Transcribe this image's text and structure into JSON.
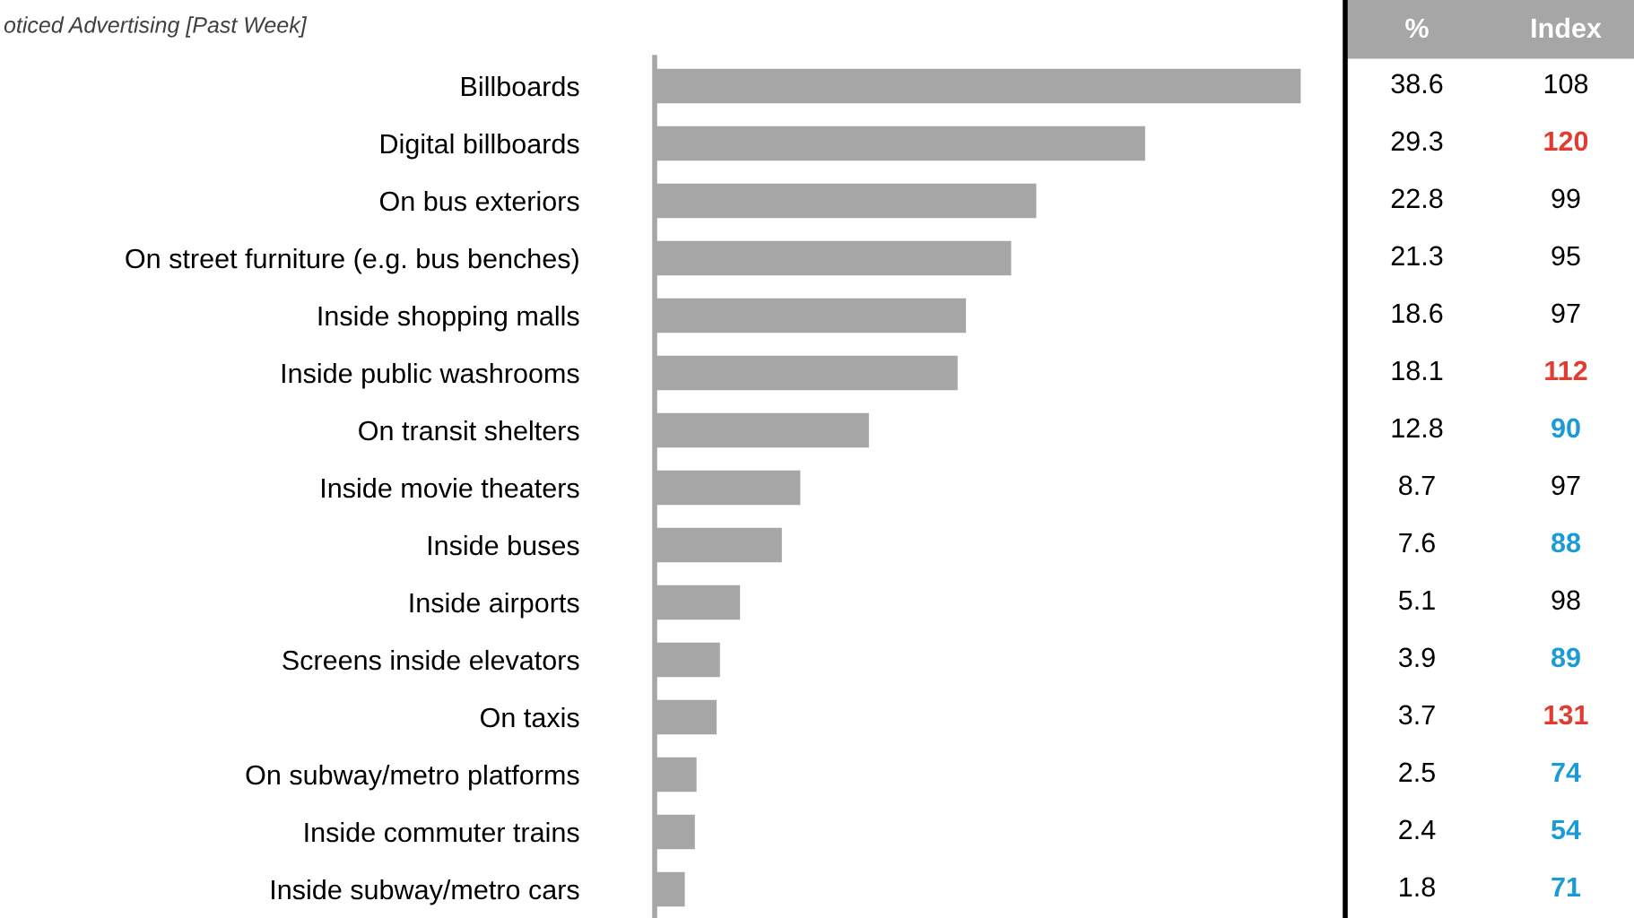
{
  "chart_data": [
    {
      "type": "bar",
      "orientation": "horizontal",
      "title": "oticed Advertising [Past Week]",
      "categories": [
        "Billboards",
        "Digital billboards",
        "On bus exteriors",
        "On street furniture (e.g. bus benches)",
        "Inside shopping malls",
        "Inside public washrooms",
        "On transit shelters",
        "Inside movie theaters",
        "Inside buses",
        "Inside airports",
        "Screens inside elevators",
        "On taxis",
        "On subway/metro platforms",
        "Inside commuter trains",
        "Inside subway/metro cars"
      ],
      "series": [
        {
          "name": "%",
          "color": "#a6a6a6",
          "values": [
            38.6,
            29.3,
            22.8,
            21.3,
            18.6,
            18.1,
            12.8,
            8.7,
            7.6,
            5.1,
            3.9,
            3.7,
            2.5,
            2.4,
            1.8
          ]
        }
      ],
      "data_labels": true,
      "grid": false
    },
    {
      "type": "other",
      "title": "Index",
      "values": [
        108,
        120,
        99,
        95,
        97,
        112,
        90,
        97,
        88,
        98,
        89,
        131,
        74,
        54,
        71
      ],
      "colors": [
        "#000000",
        "#e03c31",
        "#000000",
        "#000000",
        "#000000",
        "#e03c31",
        "#1a9ad6",
        "#000000",
        "#1a9ad6",
        "#000000",
        "#1a9ad6",
        "#e03c31",
        "#1a9ad6",
        "#1a9ad6",
        "#1a9ad6"
      ],
      "data_labels": true
    }
  ]
}
